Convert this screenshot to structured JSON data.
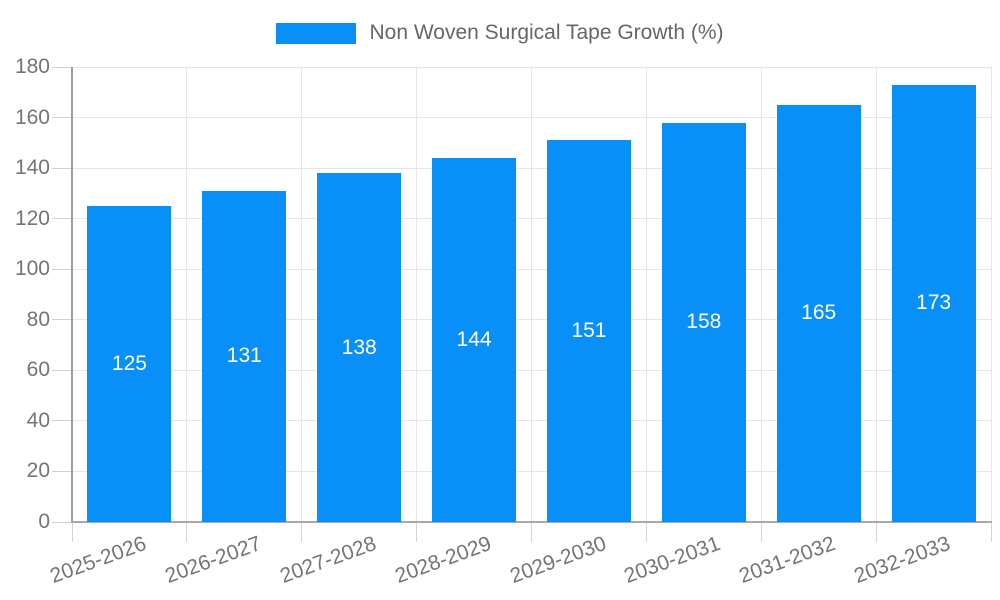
{
  "legend": {
    "label": "Non Woven Surgical Tape Growth (%)"
  },
  "chart_data": {
    "type": "bar",
    "title": "Non Woven Surgical Tape Growth (%)",
    "xlabel": "",
    "ylabel": "",
    "categories": [
      "2025-2026",
      "2026-2027",
      "2027-2028",
      "2028-2029",
      "2029-2030",
      "2030-2031",
      "2031-2032",
      "2032-2033"
    ],
    "series": [
      {
        "name": "Non Woven Surgical Tape Growth (%)",
        "values": [
          125,
          131,
          138,
          144,
          151,
          158,
          165,
          173
        ]
      }
    ],
    "value_labels": "inside-center",
    "ylim": [
      0,
      180
    ],
    "yticks": [
      0,
      20,
      40,
      60,
      80,
      100,
      120,
      140,
      160,
      180
    ],
    "grid": true,
    "legend_position": "top-center",
    "x_label_rotation_deg": -20,
    "bar_color": "#0890f8",
    "value_label_color": "#ffffff",
    "axis_label_color": "#757575",
    "legend_text_color": "#666666",
    "gridline_color": "#e6e6e6",
    "axis_line_color": "#a8a8a8",
    "tick_color": "#d4d4d4"
  }
}
